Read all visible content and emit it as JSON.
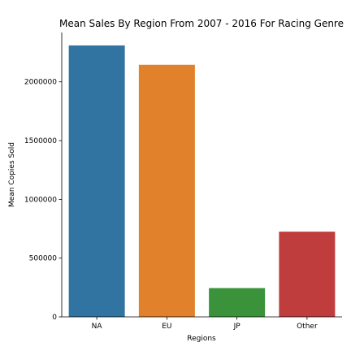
{
  "chart_data": {
    "type": "bar",
    "title": "Mean Sales By Region From 2007 - 2016 For Racing Genre",
    "xlabel": "Regions",
    "ylabel": "Mean Copies Sold",
    "categories": [
      "NA",
      "EU",
      "JP",
      "Other"
    ],
    "values": [
      2310000,
      2145000,
      245000,
      725000
    ],
    "colors": [
      "#3274a1",
      "#e1812c",
      "#3a923a",
      "#c03d3e"
    ],
    "ylim": [
      0,
      2420000
    ],
    "yticks": [
      0,
      500000,
      1000000,
      1500000,
      2000000
    ],
    "ytick_labels": [
      "0",
      "500000",
      "1000000",
      "1500000",
      "2000000"
    ],
    "grid": false,
    "legend": "none",
    "spines": [
      "left",
      "bottom"
    ]
  }
}
